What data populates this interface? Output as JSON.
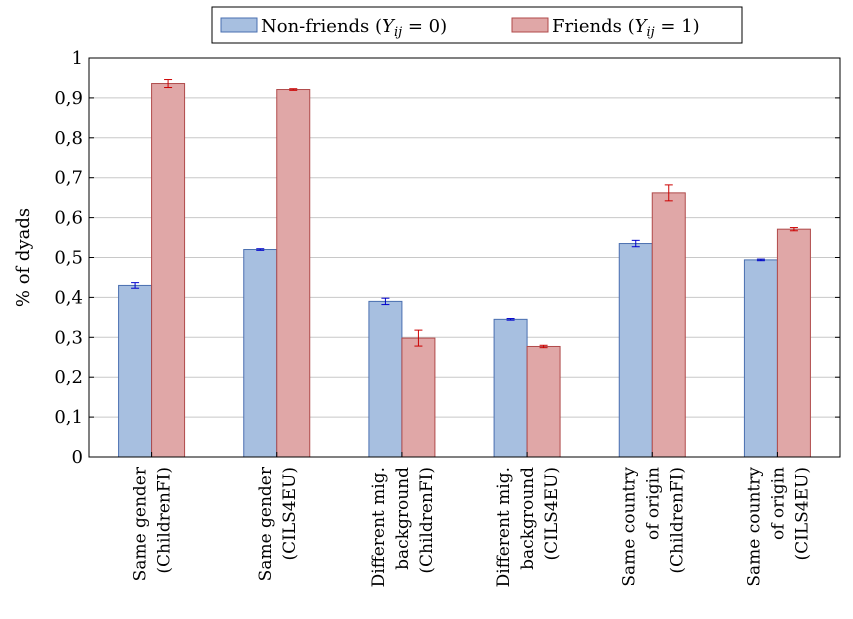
{
  "chart_data": {
    "type": "bar",
    "ylabel": "% of dyads",
    "ylim": [
      0,
      1
    ],
    "yticks": [
      0,
      0.1,
      0.2,
      0.3,
      0.4,
      0.5,
      0.6,
      0.7,
      0.8,
      0.9,
      1
    ],
    "ytick_labels": [
      "0",
      "0,1",
      "0,2",
      "0,3",
      "0,4",
      "0,5",
      "0,6",
      "0,7",
      "0,8",
      "0,9",
      "1"
    ],
    "grid": "horizontal",
    "legend": "top-center",
    "categories": [
      [
        "Same gender",
        "(ChildrenFI)"
      ],
      [
        "Same gender",
        "(CILS4EU)"
      ],
      [
        "Different mig.",
        "background",
        "(ChildrenFI)"
      ],
      [
        "Different mig.",
        "background",
        "(CILS4EU)"
      ],
      [
        "Same country",
        "of origin",
        "(ChildrenFI)"
      ],
      [
        "Same country",
        "of origin",
        "(CILS4EU)"
      ]
    ],
    "series": [
      {
        "name": "Non-friends (Y_ij = 0)",
        "legend_text": "Non-friends (",
        "legend_math_var": "Y",
        "legend_math_sub": "ij",
        "legend_math_rest": " = 0)",
        "color": "#a7bfe0",
        "stroke": "#4a6fb0",
        "error_color": "#0000cc",
        "values": [
          0.43,
          0.52,
          0.39,
          0.345,
          0.535,
          0.494
        ],
        "errors": [
          0.007,
          0.002,
          0.008,
          0.002,
          0.008,
          0.002
        ]
      },
      {
        "name": "Friends (Y_ij = 1)",
        "legend_text": "Friends (",
        "legend_math_var": "Y",
        "legend_math_sub": "ij",
        "legend_math_rest": " = 1)",
        "color": "#e0a7a7",
        "stroke": "#b04a4a",
        "error_color": "#cc0000",
        "values": [
          0.936,
          0.921,
          0.298,
          0.277,
          0.662,
          0.571
        ],
        "errors": [
          0.01,
          0.002,
          0.02,
          0.003,
          0.02,
          0.004
        ]
      }
    ]
  }
}
